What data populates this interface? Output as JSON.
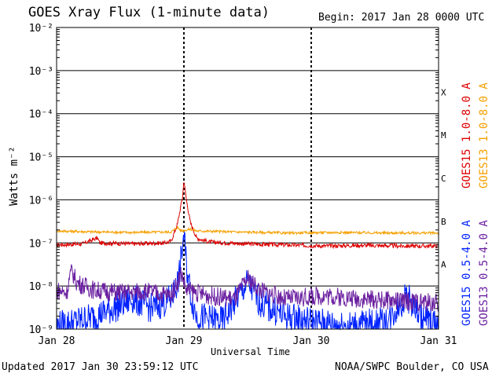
{
  "chart_data": {
    "type": "line",
    "title": "GOES Xray Flux (1-minute data)",
    "begin": "Begin:  2017 Jan 28 0000 UTC",
    "updated": "Updated 2017 Jan 30 23:59:12 UTC",
    "credit": "NOAA/SWPC Boulder, CO USA",
    "xlabel": "Universal Time",
    "ylabel": "Watts m⁻²",
    "x_ticks": [
      "Jan 28",
      "Jan 29",
      "Jan 30",
      "Jan 31"
    ],
    "y_ticks": [
      "10⁻²",
      "10⁻³",
      "10⁻⁴",
      "10⁻⁵",
      "10⁻⁶",
      "10⁻⁷",
      "10⁻⁸",
      "10⁻⁹"
    ],
    "y_scale": "log",
    "ylim": [
      1e-09,
      0.01
    ],
    "xlim_days": [
      0,
      3
    ],
    "flare_classes": [
      "X",
      "M",
      "C",
      "B",
      "A"
    ],
    "series": [
      {
        "name": "GOES15 1.0-8.0 A",
        "color": "#dd0000",
        "points": [
          [
            0.0,
            9e-08
          ],
          [
            0.2,
            9.5e-08
          ],
          [
            0.32,
            1.3e-07
          ],
          [
            0.34,
            1e-07
          ],
          [
            0.6,
            9.5e-08
          ],
          [
            0.85,
            1e-07
          ],
          [
            0.9,
            1.1e-07
          ],
          [
            0.95,
            2.8e-07
          ],
          [
            0.99,
            1.2e-06
          ],
          [
            1.0,
            2.8e-06
          ],
          [
            1.02,
            1e-06
          ],
          [
            1.05,
            3e-07
          ],
          [
            1.1,
            1.3e-07
          ],
          [
            1.2,
            1.05e-07
          ],
          [
            1.5,
            9.5e-08
          ],
          [
            1.8,
            9e-08
          ],
          [
            2.1,
            8.5e-08
          ],
          [
            2.4,
            8.8e-08
          ],
          [
            2.7,
            8.5e-08
          ],
          [
            3.0,
            8.5e-08
          ]
        ]
      },
      {
        "name": "GOES13 1.0-8.0 A",
        "color": "#f5a000",
        "points": [
          [
            0.0,
            1.9e-07
          ],
          [
            0.3,
            1.8e-07
          ],
          [
            0.6,
            1.75e-07
          ],
          [
            0.9,
            1.8e-07
          ],
          [
            0.95,
            2.3e-07
          ],
          [
            0.98,
            1.9e-07
          ],
          [
            1.05,
            2.1e-07
          ],
          [
            1.1,
            1.9e-07
          ],
          [
            1.4,
            1.8e-07
          ],
          [
            1.8,
            1.7e-07
          ],
          [
            2.2,
            1.75e-07
          ],
          [
            2.6,
            1.7e-07
          ],
          [
            3.0,
            1.7e-07
          ]
        ]
      },
      {
        "name": "GOES15 0.5-4.0 A",
        "color": "#0022ff",
        "points": [
          [
            0.0,
            1.2e-09
          ],
          [
            0.15,
            1.5e-09
          ],
          [
            0.3,
            2e-09
          ],
          [
            0.45,
            3e-09
          ],
          [
            0.6,
            5e-09
          ],
          [
            0.75,
            3e-09
          ],
          [
            0.9,
            5e-09
          ],
          [
            0.96,
            1.5e-08
          ],
          [
            1.0,
            1.6e-07
          ],
          [
            1.02,
            3e-08
          ],
          [
            1.06,
            5e-09
          ],
          [
            1.1,
            2e-09
          ],
          [
            1.3,
            1.5e-09
          ],
          [
            1.5,
            1.2e-08
          ],
          [
            1.6,
            4e-09
          ],
          [
            1.8,
            2e-09
          ],
          [
            2.0,
            1.5e-09
          ],
          [
            2.3,
            1.2e-09
          ],
          [
            2.6,
            1.5e-09
          ],
          [
            2.75,
            6e-09
          ],
          [
            2.85,
            2e-09
          ],
          [
            3.0,
            1.2e-09
          ]
        ]
      },
      {
        "name": "GOES13 0.5-4.0 A",
        "color": "#6a1fa0",
        "points": [
          [
            0.0,
            8e-09
          ],
          [
            0.08,
            7e-09
          ],
          [
            0.1,
            1.5e-08
          ],
          [
            0.12,
            2.2e-08
          ],
          [
            0.16,
            1.2e-08
          ],
          [
            0.3,
            8e-09
          ],
          [
            0.5,
            7e-09
          ],
          [
            0.7,
            7.5e-09
          ],
          [
            0.9,
            6e-09
          ],
          [
            0.98,
            2e-08
          ],
          [
            1.02,
            8e-09
          ],
          [
            1.2,
            6e-09
          ],
          [
            1.4,
            5e-09
          ],
          [
            1.5,
            1.5e-08
          ],
          [
            1.6,
            8e-09
          ],
          [
            1.8,
            5e-09
          ],
          [
            2.1,
            6e-09
          ],
          [
            2.4,
            5e-09
          ],
          [
            2.7,
            4.5e-09
          ],
          [
            3.0,
            4e-09
          ]
        ]
      }
    ]
  }
}
